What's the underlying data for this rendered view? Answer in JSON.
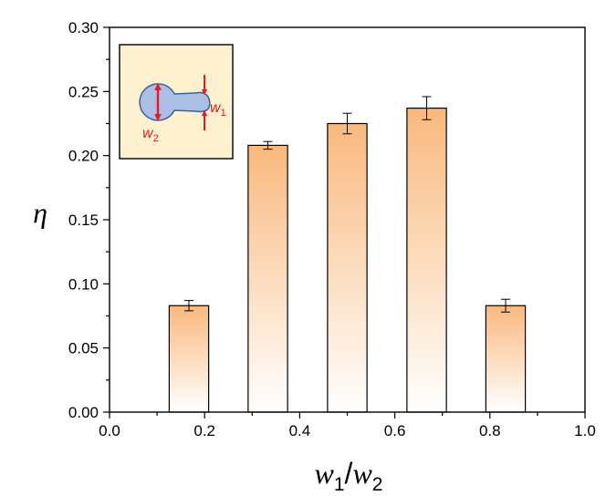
{
  "chart_data": {
    "type": "bar",
    "title": "",
    "xlabel": {
      "base": "w",
      "sub1": "1",
      "slash": "/",
      "base2": "w",
      "sub2": "2"
    },
    "ylabel": "η",
    "x": [
      0.167,
      0.333,
      0.5,
      0.667,
      0.833
    ],
    "bar_width": 0.083,
    "values": [
      0.083,
      0.208,
      0.225,
      0.237,
      0.083
    ],
    "errors": [
      0.004,
      0.003,
      0.008,
      0.009,
      0.005
    ],
    "xlim": [
      0.0,
      1.0
    ],
    "ylim": [
      0.0,
      0.3
    ],
    "xticks": [
      "0.0",
      "0.2",
      "0.4",
      "0.6",
      "0.8",
      "1.0"
    ],
    "yticks": [
      "0.00",
      "0.05",
      "0.10",
      "0.15",
      "0.20",
      "0.25",
      "0.30"
    ],
    "grid": false,
    "bar_gradient": {
      "top": "#f9b97d",
      "bottom": "#ffffff"
    },
    "inset": {
      "labels": [
        {
          "base": "w",
          "sub": "1"
        },
        {
          "base": "w",
          "sub": "2"
        }
      ],
      "background": "#fdf1cf",
      "shape_fill": "#aabfe3",
      "shape_stroke": "#3e5fa4",
      "arrow_color": "#e8191f"
    }
  }
}
